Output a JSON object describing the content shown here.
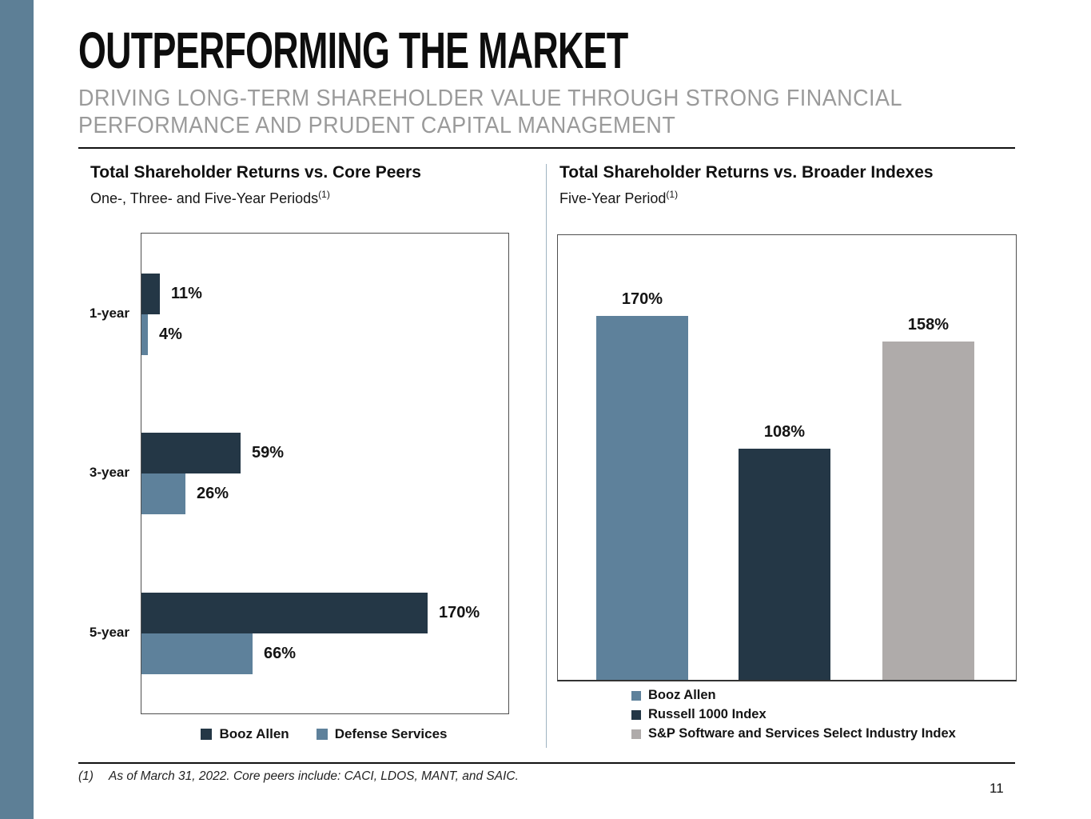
{
  "header": {
    "title": "OUTPERFORMING THE MARKET",
    "subtitle": "DRIVING LONG-TERM SHAREHOLDER VALUE THROUGH STRONG FINANCIAL PERFORMANCE AND PRUDENT CAPITAL MANAGEMENT"
  },
  "colors": {
    "booz_allen_dark_navy": "#243746",
    "booz_allen_blue": "#5e819b",
    "index_gray": "#afabaa",
    "sidebar_accent": "#5d7f96",
    "subtitle_gray": "#9a9a9a"
  },
  "chart_data": [
    {
      "id": "core_peers",
      "type": "bar",
      "orientation": "horizontal",
      "title": "Total Shareholder Returns vs. Core Peers",
      "subtitle": "One-, Three- and Five-Year Periods",
      "footnote_ref": "(1)",
      "categories": [
        "1-year",
        "3-year",
        "5-year"
      ],
      "series": [
        {
          "name": "Booz Allen",
          "color": "#243746",
          "values": [
            11,
            59,
            170
          ]
        },
        {
          "name": "Defense Services",
          "color": "#5e819b",
          "values": [
            4,
            26,
            66
          ]
        }
      ],
      "value_suffix": "%",
      "xlim": [
        0,
        215
      ],
      "grid": false,
      "data_labels": "outside-end",
      "legend_position": "bottom"
    },
    {
      "id": "broader_indexes",
      "type": "bar",
      "orientation": "vertical",
      "title": "Total Shareholder Returns vs. Broader Indexes",
      "subtitle": "Five-Year Period",
      "footnote_ref": "(1)",
      "categories": [
        "Booz Allen",
        "Russell 1000 Index",
        "S&P Software and Services Select Industry Index"
      ],
      "values": [
        170,
        108,
        158
      ],
      "colors": [
        "#5e819b",
        "#243746",
        "#afabaa"
      ],
      "value_suffix": "%",
      "ylim": [
        0,
        210
      ],
      "grid": false,
      "data_labels": "above",
      "legend_position": "bottom-left"
    }
  ],
  "footnote": {
    "marker": "(1)",
    "text": "As of March 31, 2022. Core peers include: CACI, LDOS, MANT, and SAIC."
  },
  "page": {
    "number": "11"
  }
}
